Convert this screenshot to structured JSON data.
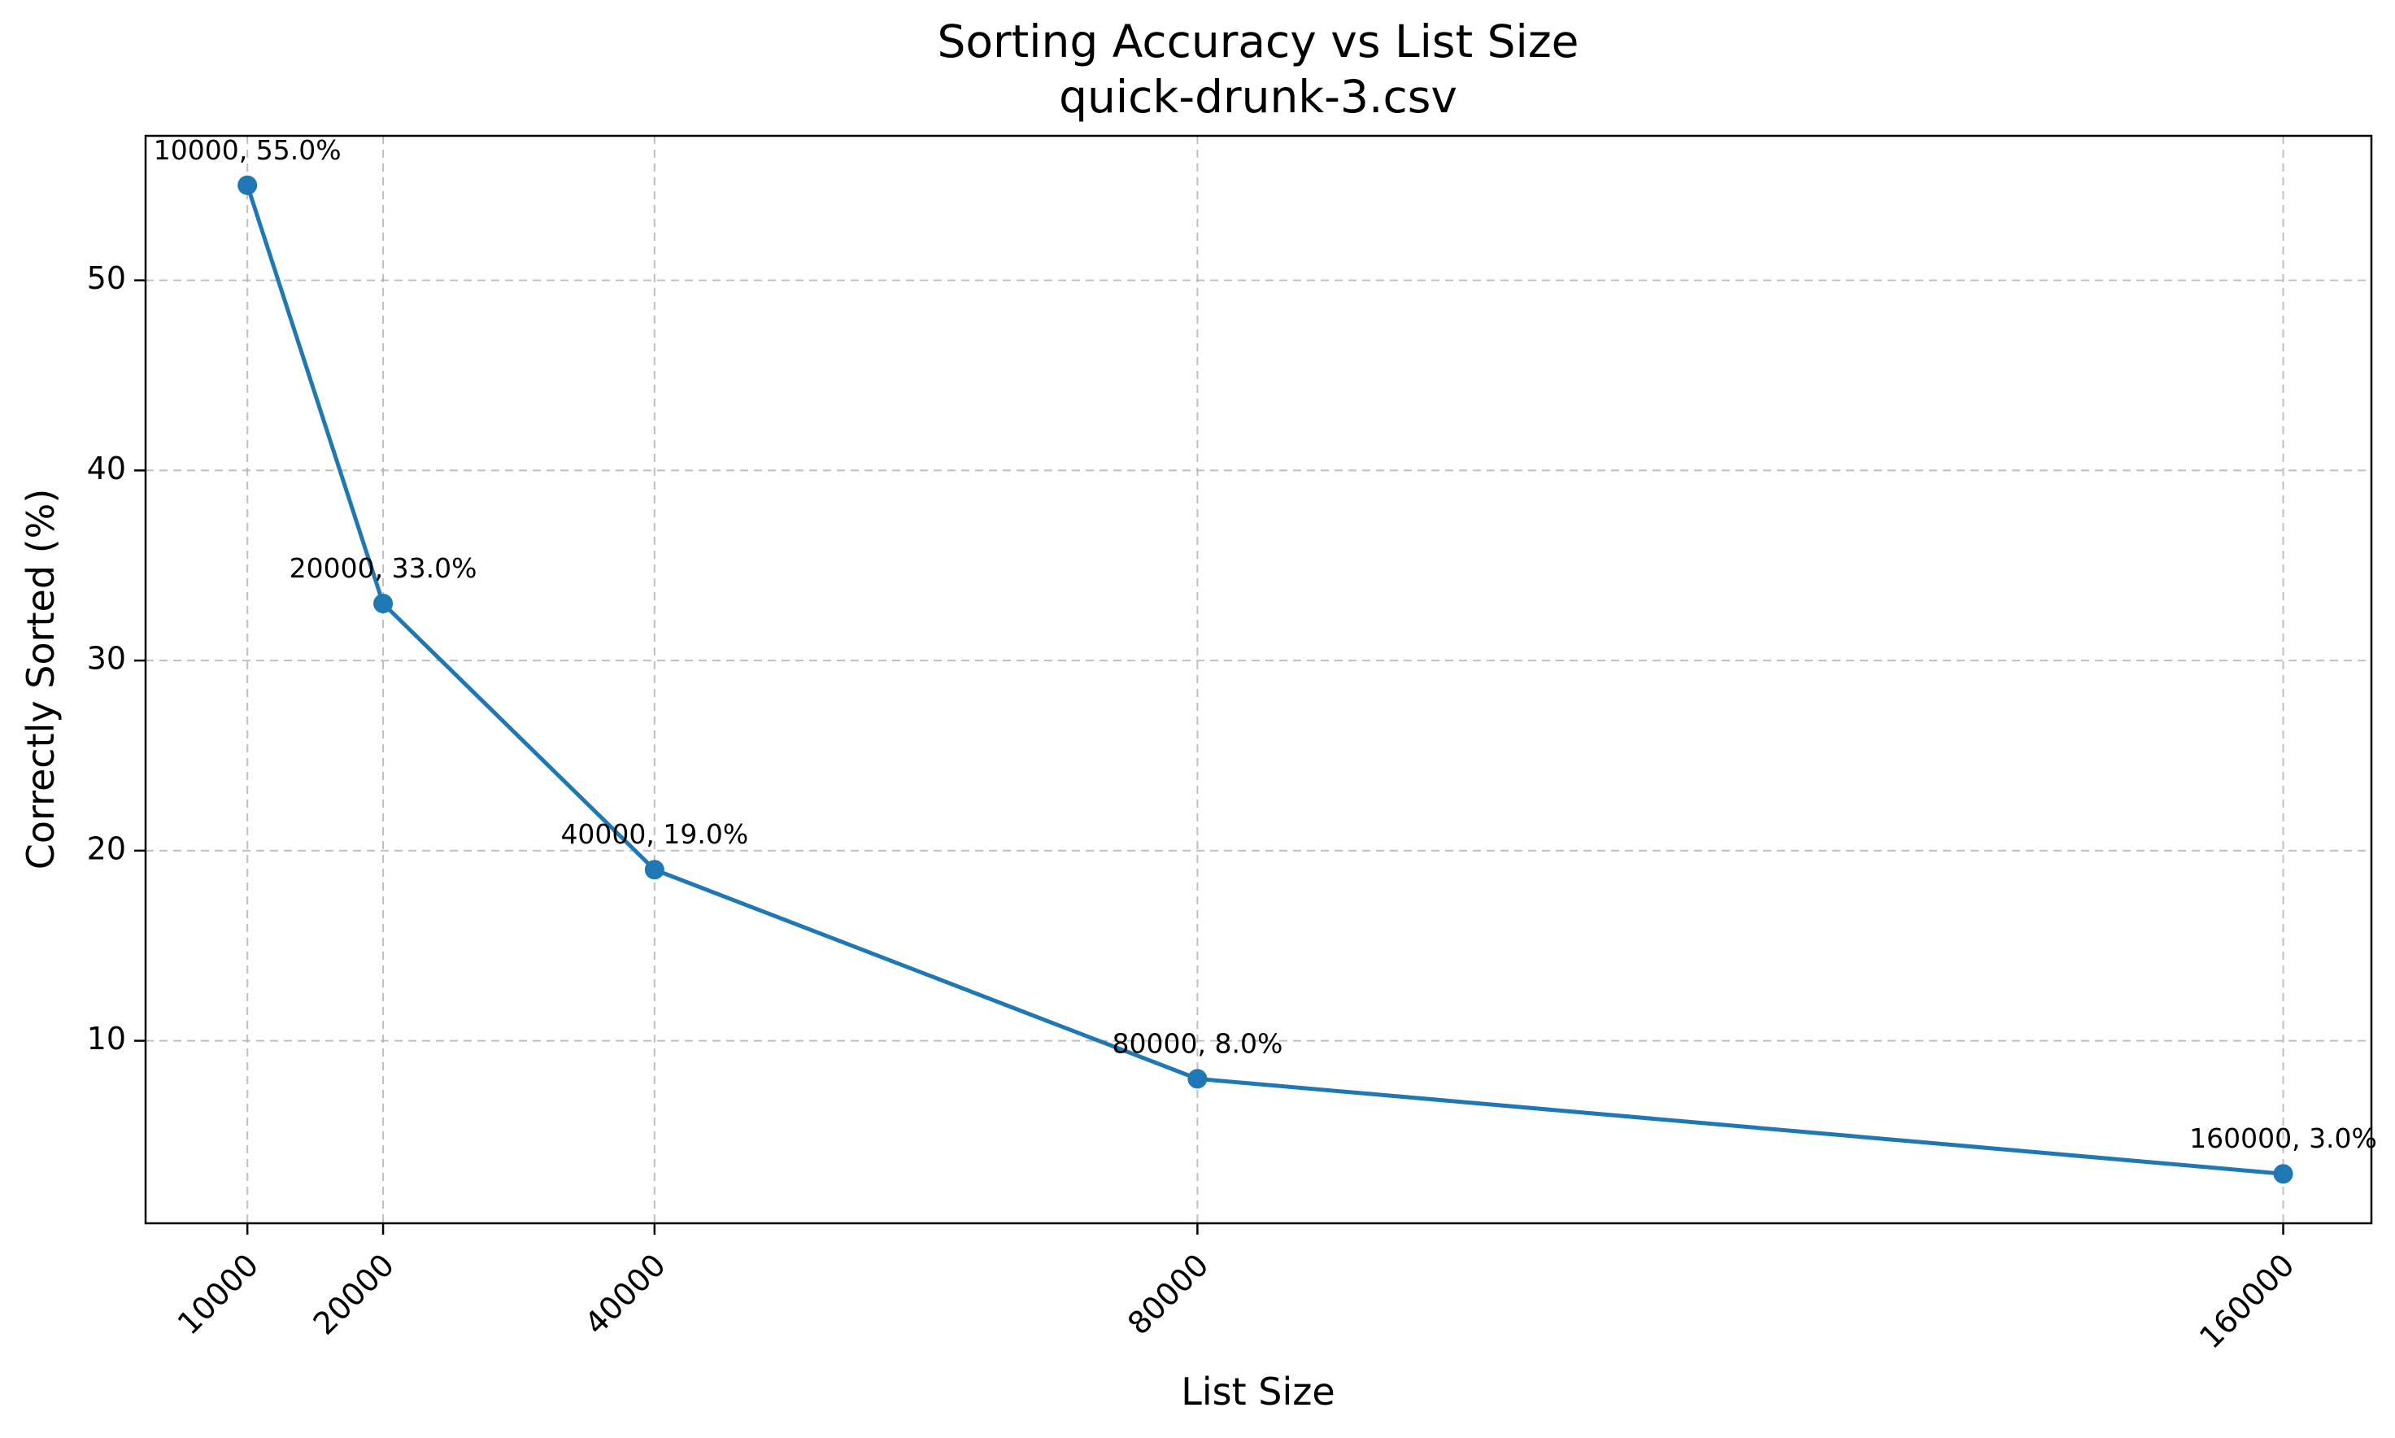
{
  "chart_data": {
    "type": "line",
    "title": "Sorting Accuracy vs List Size",
    "subtitle": "quick-drunk-3.csv",
    "xlabel": "List Size",
    "ylabel": "Correctly Sorted (%)",
    "x": [
      10000,
      20000,
      40000,
      80000,
      160000
    ],
    "xtick_labels": [
      "10000",
      "20000",
      "40000",
      "80000",
      "160000"
    ],
    "xlim": [
      2500,
      166500
    ],
    "ylim": [
      0.4,
      57.6
    ],
    "yticks": [
      10,
      20,
      30,
      40,
      50
    ],
    "ytick_labels": [
      "10",
      "20",
      "30",
      "40",
      "50"
    ],
    "grid": true,
    "series": [
      {
        "values": [
          55.0,
          33.0,
          19.0,
          8.0,
          3.0
        ],
        "color": "#1f77b4"
      }
    ],
    "point_labels": [
      "10000, 55.0%",
      "20000, 33.0%",
      "40000, 19.0%",
      "80000, 8.0%",
      "160000, 3.0%"
    ]
  }
}
